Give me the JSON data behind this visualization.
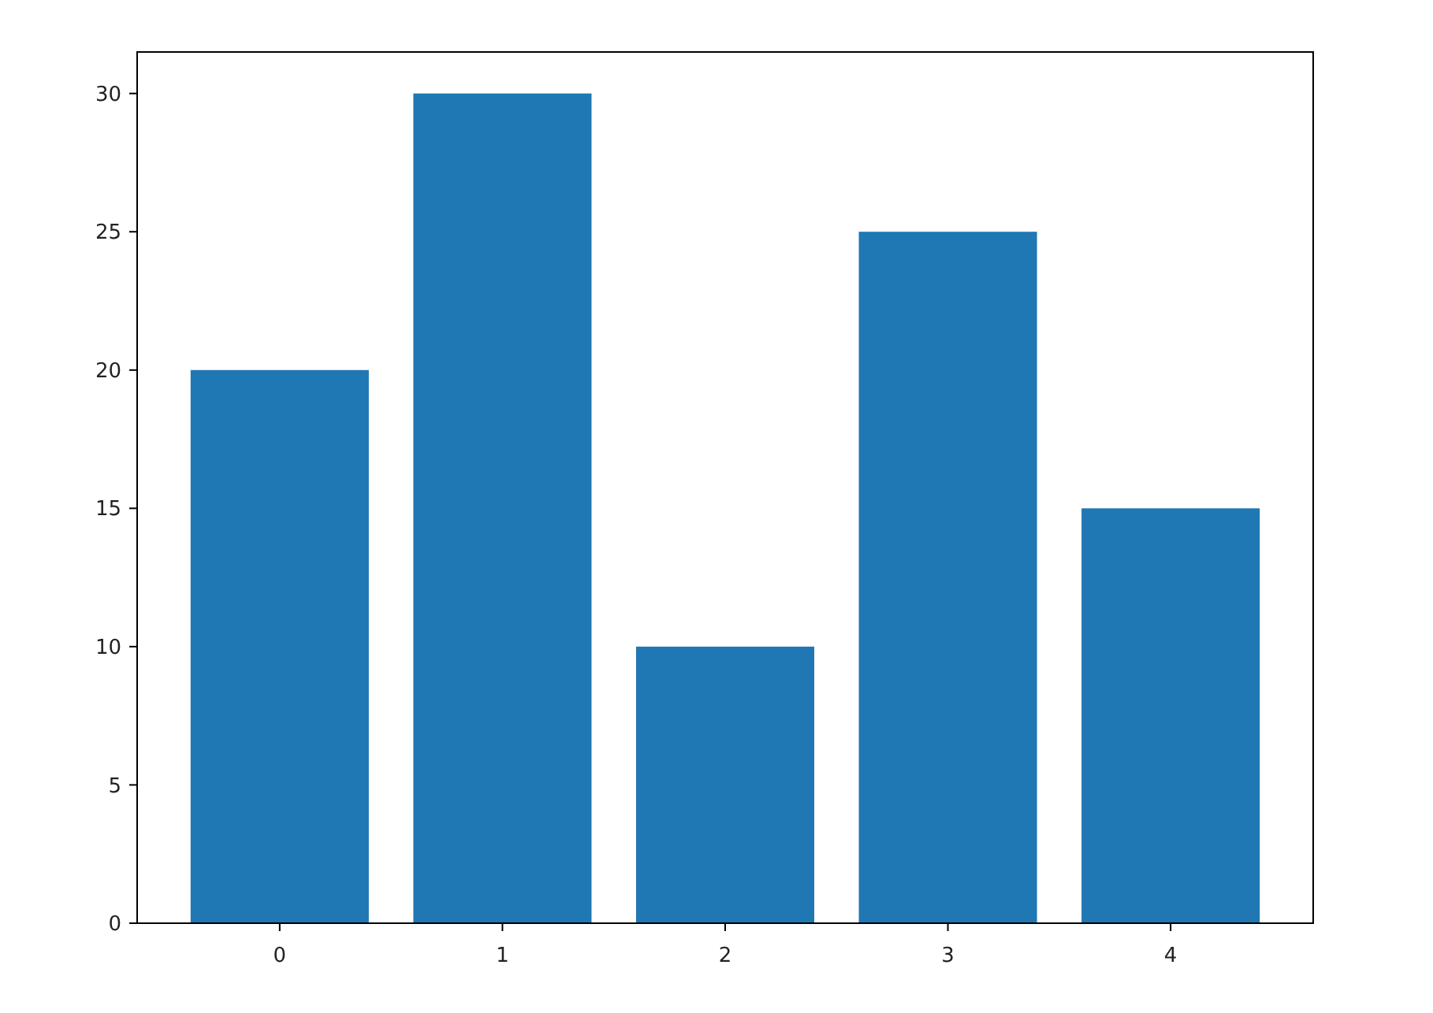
{
  "chart_data": {
    "type": "bar",
    "categories": [
      "0",
      "1",
      "2",
      "3",
      "4"
    ],
    "values": [
      20,
      30,
      10,
      25,
      15
    ],
    "color": "#1f77b4",
    "ylim": [
      0,
      31.5
    ],
    "yticks": [
      0,
      5,
      10,
      15,
      20,
      25,
      30
    ],
    "grid": false
  }
}
